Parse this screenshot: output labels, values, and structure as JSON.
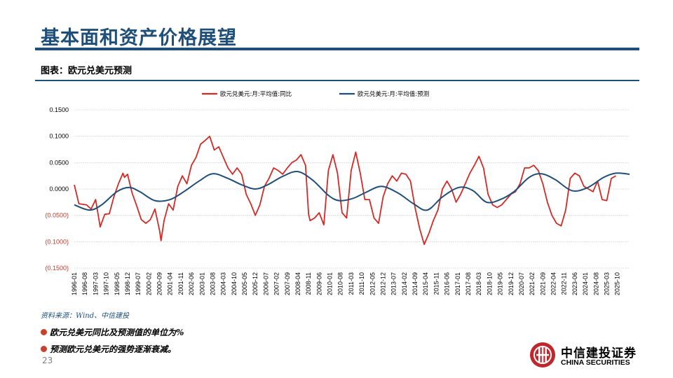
{
  "header": {
    "title": "基本面和资产价格展望",
    "subtitle": "图表：欧元兑美元预测"
  },
  "footer": {
    "source": "资料来源：Wind、中信建投",
    "bullets": [
      "欧元兑美元同比及预测值的单位为%",
      "预测欧元兑美元的强势逐渐衰减。"
    ],
    "page_number": "23",
    "logo_cn": "中信建投证券",
    "logo_en": "CHINA SECURITIES"
  },
  "colors": {
    "brand": "#1f4e79",
    "series_red": "#d42a26",
    "series_blue": "#1f4e79",
    "bullet": "#c8412a",
    "logo_red": "#c0272d"
  },
  "chart_data": {
    "type": "line",
    "title": "",
    "xlabel": "",
    "ylabel": "",
    "ylim": [
      -0.15,
      0.15
    ],
    "yticks": [
      {
        "value": 0.15,
        "label": "0.1500"
      },
      {
        "value": 0.1,
        "label": "0.1000"
      },
      {
        "value": 0.05,
        "label": "0.0500"
      },
      {
        "value": 0.0,
        "label": "0.0000"
      },
      {
        "value": -0.05,
        "label": "(0.0500)"
      },
      {
        "value": -0.1,
        "label": "(0.1000)"
      },
      {
        "value": -0.15,
        "label": "(0.1500)"
      }
    ],
    "x_start": "1996-01",
    "x_end": "2026-06",
    "x_tick_labels": [
      "1996-01",
      "1996-08",
      "1997-03",
      "1997-10",
      "1998-05",
      "1998-12",
      "1999-07",
      "2000-02",
      "2000-09",
      "2001-04",
      "2001-11",
      "2002-06",
      "2003-01",
      "2003-08",
      "2004-03",
      "2004-10",
      "2005-05",
      "2005-12",
      "2006-07",
      "2007-02",
      "2007-09",
      "2008-04",
      "2008-11",
      "2009-06",
      "2010-01",
      "2010-08",
      "2011-03",
      "2011-10",
      "2012-05",
      "2012-12",
      "2013-07",
      "2014-02",
      "2014-09",
      "2015-04",
      "2015-11",
      "2016-06",
      "2017-01",
      "2017-08",
      "2018-03",
      "2018-10",
      "2019-05",
      "2019-12",
      "2020-07",
      "2021-02",
      "2021-09",
      "2022-04",
      "2022-11",
      "2023-06",
      "2024-01",
      "2024-08",
      "2025-03",
      "2025-10"
    ],
    "series": [
      {
        "name": "欧元兑美元:月:平均值:同比",
        "color": "#d42a26",
        "points": [
          [
            "1996-01",
            0.008
          ],
          [
            "1996-04",
            -0.028
          ],
          [
            "1996-09",
            -0.03
          ],
          [
            "1996-12",
            -0.038
          ],
          [
            "1997-03",
            -0.02
          ],
          [
            "1997-06",
            -0.072
          ],
          [
            "1997-09",
            -0.048
          ],
          [
            "1997-12",
            -0.047
          ],
          [
            "1998-03",
            -0.015
          ],
          [
            "1998-06",
            0.01
          ],
          [
            "1998-09",
            0.03
          ],
          [
            "1998-10",
            0.022
          ],
          [
            "1998-12",
            0.028
          ],
          [
            "1999-03",
            -0.008
          ],
          [
            "1999-06",
            -0.032
          ],
          [
            "1999-09",
            -0.058
          ],
          [
            "1999-12",
            -0.065
          ],
          [
            "2000-03",
            -0.058
          ],
          [
            "2000-06",
            -0.038
          ],
          [
            "2000-09",
            -0.078
          ],
          [
            "2000-10",
            -0.098
          ],
          [
            "2000-12",
            -0.06
          ],
          [
            "2001-03",
            -0.028
          ],
          [
            "2001-06",
            -0.04
          ],
          [
            "2001-09",
            0.005
          ],
          [
            "2001-12",
            0.025
          ],
          [
            "2002-03",
            0.01
          ],
          [
            "2002-06",
            0.045
          ],
          [
            "2002-09",
            0.06
          ],
          [
            "2002-12",
            0.085
          ],
          [
            "2003-03",
            0.092
          ],
          [
            "2003-06",
            0.1
          ],
          [
            "2003-09",
            0.074
          ],
          [
            "2003-12",
            0.08
          ],
          [
            "2004-03",
            0.06
          ],
          [
            "2004-06",
            0.04
          ],
          [
            "2004-09",
            0.028
          ],
          [
            "2004-12",
            0.04
          ],
          [
            "2005-03",
            0.028
          ],
          [
            "2005-06",
            -0.01
          ],
          [
            "2005-09",
            -0.028
          ],
          [
            "2005-12",
            -0.05
          ],
          [
            "2006-03",
            -0.03
          ],
          [
            "2006-06",
            0.005
          ],
          [
            "2006-09",
            0.02
          ],
          [
            "2006-12",
            0.04
          ],
          [
            "2007-03",
            0.035
          ],
          [
            "2007-06",
            0.028
          ],
          [
            "2007-09",
            0.04
          ],
          [
            "2007-12",
            0.05
          ],
          [
            "2008-03",
            0.055
          ],
          [
            "2008-06",
            0.065
          ],
          [
            "2008-09",
            0.045
          ],
          [
            "2008-11",
            -0.048
          ],
          [
            "2008-12",
            -0.06
          ],
          [
            "2009-03",
            -0.055
          ],
          [
            "2009-06",
            -0.045
          ],
          [
            "2009-09",
            -0.068
          ],
          [
            "2009-12",
            0.035
          ],
          [
            "2010-03",
            0.065
          ],
          [
            "2010-06",
            0.03
          ],
          [
            "2010-09",
            -0.045
          ],
          [
            "2010-12",
            -0.055
          ],
          [
            "2011-03",
            0.035
          ],
          [
            "2011-06",
            0.07
          ],
          [
            "2011-09",
            0.03
          ],
          [
            "2011-12",
            -0.02
          ],
          [
            "2012-03",
            -0.02
          ],
          [
            "2012-06",
            -0.055
          ],
          [
            "2012-09",
            -0.065
          ],
          [
            "2012-12",
            -0.015
          ],
          [
            "2013-03",
            0.01
          ],
          [
            "2013-06",
            0.025
          ],
          [
            "2013-09",
            0.015
          ],
          [
            "2013-12",
            0.03
          ],
          [
            "2014-03",
            0.028
          ],
          [
            "2014-06",
            0.015
          ],
          [
            "2014-09",
            -0.035
          ],
          [
            "2014-12",
            -0.075
          ],
          [
            "2015-03",
            -0.105
          ],
          [
            "2015-06",
            -0.085
          ],
          [
            "2015-09",
            -0.06
          ],
          [
            "2015-12",
            -0.04
          ],
          [
            "2016-03",
            0.0
          ],
          [
            "2016-06",
            0.015
          ],
          [
            "2016-09",
            0.0
          ],
          [
            "2016-12",
            -0.025
          ],
          [
            "2017-03",
            -0.01
          ],
          [
            "2017-06",
            0.01
          ],
          [
            "2017-09",
            0.03
          ],
          [
            "2017-12",
            0.045
          ],
          [
            "2018-03",
            0.062
          ],
          [
            "2018-06",
            0.04
          ],
          [
            "2018-09",
            -0.01
          ],
          [
            "2018-12",
            -0.03
          ],
          [
            "2019-03",
            -0.035
          ],
          [
            "2019-06",
            -0.03
          ],
          [
            "2019-09",
            -0.02
          ],
          [
            "2019-12",
            -0.01
          ],
          [
            "2020-03",
            -0.005
          ],
          [
            "2020-06",
            0.01
          ],
          [
            "2020-09",
            0.04
          ],
          [
            "2020-12",
            0.04
          ],
          [
            "2021-03",
            0.045
          ],
          [
            "2021-06",
            0.035
          ],
          [
            "2021-09",
            0.01
          ],
          [
            "2021-12",
            -0.025
          ],
          [
            "2022-03",
            -0.05
          ],
          [
            "2022-06",
            -0.065
          ],
          [
            "2022-09",
            -0.07
          ],
          [
            "2022-12",
            -0.04
          ],
          [
            "2023-03",
            0.02
          ],
          [
            "2023-06",
            0.03
          ],
          [
            "2023-09",
            0.025
          ],
          [
            "2023-12",
            0.005
          ],
          [
            "2024-03",
            0.0
          ],
          [
            "2024-06",
            -0.005
          ],
          [
            "2024-09",
            0.015
          ],
          [
            "2024-12",
            -0.02
          ],
          [
            "2025-03",
            -0.022
          ],
          [
            "2025-06",
            0.02
          ],
          [
            "2025-09",
            0.025
          ]
        ]
      },
      {
        "name": "欧元兑美元:月:平均值:预测",
        "color": "#1f4e79",
        "points": [
          [
            "1996-01",
            -0.03
          ],
          [
            "1996-11",
            -0.04
          ],
          [
            "1997-07",
            -0.03
          ],
          [
            "1998-05",
            -0.005
          ],
          [
            "1999-01",
            0.003
          ],
          [
            "1999-08",
            -0.005
          ],
          [
            "2000-06",
            -0.022
          ],
          [
            "2001-04",
            -0.02
          ],
          [
            "2002-01",
            -0.005
          ],
          [
            "2002-11",
            0.015
          ],
          [
            "2003-08",
            0.029
          ],
          [
            "2004-06",
            0.02
          ],
          [
            "2005-03",
            0.008
          ],
          [
            "2005-12",
            0.0
          ],
          [
            "2006-08",
            0.008
          ],
          [
            "2007-06",
            0.024
          ],
          [
            "2008-04",
            0.033
          ],
          [
            "2009-02",
            0.016
          ],
          [
            "2009-12",
            -0.012
          ],
          [
            "2010-07",
            -0.022
          ],
          [
            "2011-04",
            -0.018
          ],
          [
            "2012-01",
            -0.006
          ],
          [
            "2012-11",
            0.005
          ],
          [
            "2013-10",
            -0.008
          ],
          [
            "2014-08",
            -0.028
          ],
          [
            "2015-05",
            -0.04
          ],
          [
            "2016-03",
            -0.015
          ],
          [
            "2017-02",
            0.003
          ],
          [
            "2017-11",
            -0.003
          ],
          [
            "2018-08",
            -0.025
          ],
          [
            "2019-05",
            -0.02
          ],
          [
            "2020-02",
            -0.005
          ],
          [
            "2020-12",
            0.022
          ],
          [
            "2021-08",
            0.029
          ],
          [
            "2022-05",
            0.018
          ],
          [
            "2023-04",
            -0.003
          ],
          [
            "2024-02",
            0.002
          ],
          [
            "2025-01",
            0.022
          ],
          [
            "2025-09",
            0.03
          ],
          [
            "2026-06",
            0.028
          ]
        ]
      }
    ],
    "legend_position": "top",
    "grid": true
  }
}
